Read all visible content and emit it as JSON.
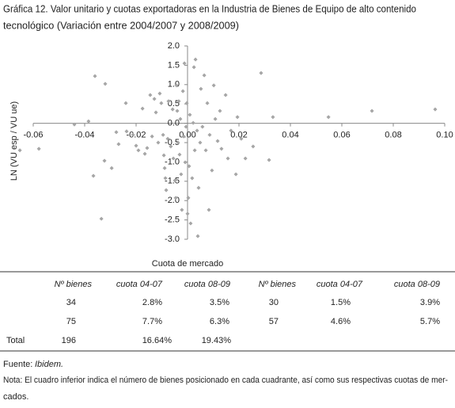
{
  "chart_data": {
    "type": "scatter",
    "title": [
      "Gráfica 12. Valor unitario y cuotas exportadoras en la Industria de Bienes de Equipo de alto contenido",
      "tecnológico (Variación entre  2004/2007 y 2008/2009)"
    ],
    "x_label": "Cuota de mercado",
    "y_label": "LN (VU esp / VU ue)",
    "color": "#a6a6a6",
    "xlim": [
      -0.06,
      0.1
    ],
    "ylim": [
      -3,
      2
    ],
    "xticks": [
      -0.06,
      -0.04,
      -0.02,
      {
        "value": 0,
        "label": "0.00"
      },
      0.02,
      0.04,
      0.06,
      0.08,
      {
        "value": 0.1,
        "label": "0.10"
      }
    ],
    "yticks": [
      {
        "value": 2,
        "label": "2.0"
      },
      1.5,
      {
        "value": 1,
        "label": "1.0"
      },
      0.5,
      {
        "value": 0,
        "label": "0.0"
      },
      -0.5,
      {
        "value": -1,
        "label": "-1.0"
      },
      -1.5,
      {
        "value": -2,
        "label": "-2.0"
      },
      -2.5,
      {
        "value": -3,
        "label": "-3.0"
      }
    ],
    "x": [
      -0.0652,
      -0.0578,
      -0.044,
      -0.0385,
      -0.036,
      -0.032,
      -0.0366,
      -0.0335,
      -0.0323,
      -0.0295,
      -0.024,
      -0.0277,
      -0.0268,
      -0.0237,
      -0.0212,
      -0.02,
      -0.0191,
      -0.0175,
      -0.0166,
      -0.0157,
      -0.0145,
      -0.0138,
      -0.0129,
      -0.0123,
      -0.0114,
      -0.0108,
      -0.0102,
      -0.0095,
      -0.0092,
      -0.0089,
      -0.0086,
      -0.0083,
      -0.0077,
      -0.0074,
      -0.0065,
      -0.0058,
      -0.0055,
      -0.0049,
      -0.0046,
      -0.0043,
      -0.004,
      -0.0037,
      -0.0031,
      -0.0025,
      -0.0022,
      -0.0018,
      -0.0015,
      -0.0012,
      -0.0009,
      -0.0006,
      0.0,
      0.0003,
      0.0006,
      0.0009,
      0.0012,
      0.0018,
      0.0025,
      0.0028,
      0.0031,
      0.0037,
      0.004,
      0.0043,
      0.0049,
      0.0052,
      0.0058,
      0.0065,
      0.0071,
      0.0077,
      0.0083,
      0.0086,
      0.0095,
      0.0102,
      0.0108,
      0.0117,
      0.0126,
      0.0132,
      0.0148,
      0.0157,
      0.0169,
      0.0188,
      0.0194,
      0.0209,
      0.0225,
      0.0255,
      0.0286,
      0.0317,
      0.0332,
      0.0548,
      0.0717,
      0.0963,
      -0.0028,
      0.0022,
      -0.0003,
      -0.0034
    ],
    "values": [
      -0.7,
      -0.66,
      -0.03,
      0.05,
      1.22,
      1.02,
      -1.36,
      -2.47,
      -0.97,
      -1.16,
      0.52,
      -0.23,
      -0.54,
      -0.21,
      -0.3,
      -0.58,
      -0.7,
      0.38,
      -0.79,
      -0.64,
      0.73,
      -0.34,
      0.63,
      0.28,
      -0.5,
      0.77,
      0.52,
      -0.3,
      -0.83,
      -1.16,
      -1.42,
      -1.73,
      -0.4,
      0.57,
      -0.6,
      0.36,
      -0.91,
      -1.48,
      -1.93,
      0.98,
      0.32,
      -0.5,
      -0.81,
      -1.32,
      -2.24,
      0.83,
      -0.34,
      1.55,
      -1.01,
      -0.09,
      -2.34,
      -1.93,
      -1.11,
      0.22,
      -2.59,
      -1.42,
      1.45,
      -0.7,
      1.65,
      -0.19,
      -2.92,
      -1.67,
      -0.5,
      0.89,
      -0.09,
      1.24,
      -0.7,
      0.52,
      -2.24,
      -0.3,
      -1.22,
      0.98,
      0.11,
      -0.46,
      0.32,
      -0.66,
      0.73,
      -0.91,
      -0.19,
      -1.32,
      0.16,
      -0.4,
      -0.91,
      -0.6,
      1.3,
      -0.95,
      0.16,
      0.16,
      0.32,
      0.36,
      0.11,
      0.01,
      0.52,
      0.57
    ]
  },
  "table": {
    "header": [
      "Nº bienes",
      "cuota 04-07",
      "cuota 08-09",
      "Nº bienes",
      "cuota 04-07",
      "cuota 08-09"
    ],
    "rows": [
      {
        "cells": [
          "34",
          "2.8%",
          "3.5%",
          "30",
          "1.5%",
          "3.9%"
        ]
      },
      {
        "cells": [
          "75",
          "7.7%",
          "6.3%",
          "57",
          "4.6%",
          "5.7%"
        ]
      },
      {
        "label": "Total",
        "cells": [
          "196",
          "16.64%",
          "19.43%"
        ]
      }
    ]
  },
  "footer": {
    "source_label": "Fuente:",
    "source": "Ibidem.",
    "note": [
      "Nota: El cuadro inferior indica el número de bienes posicionado en cada cuadrante, así como sus respectivas cuotas de mer-",
      "cados."
    ]
  }
}
